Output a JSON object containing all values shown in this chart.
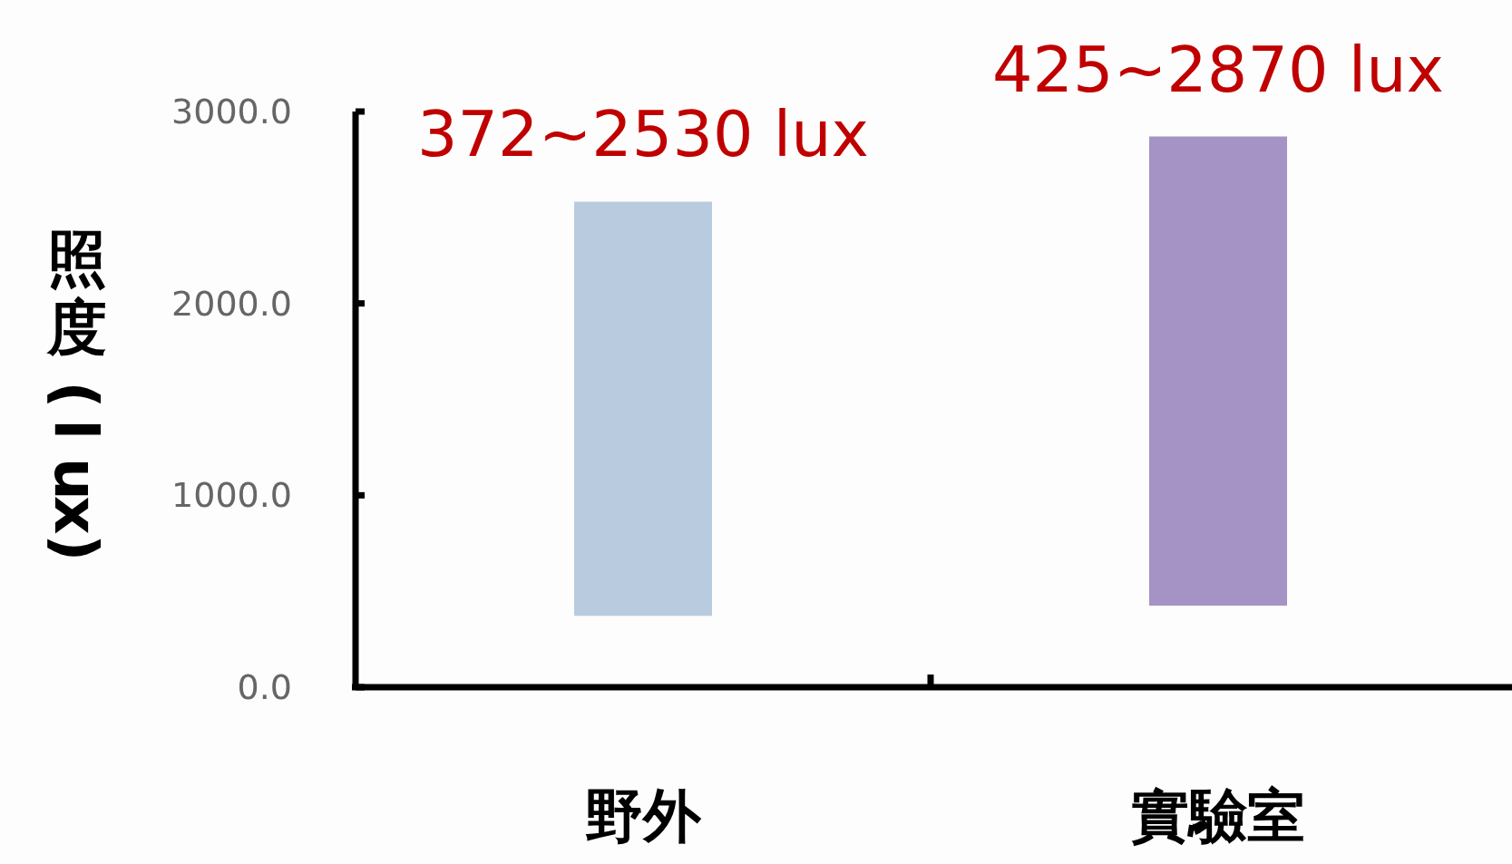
{
  "chart_data": {
    "type": "bar",
    "ylabel": "照度 (lux)",
    "categories": [
      "野外",
      "實驗室"
    ],
    "base": [
      372,
      425
    ],
    "values": [
      2158,
      2445
    ],
    "colors": [
      "#b9cbde",
      "#a593c5"
    ],
    "ylim": [
      0,
      3000
    ],
    "yticks": [
      {
        "value": 0,
        "label": "0.0"
      },
      {
        "value": 1000,
        "label": "1000.0"
      },
      {
        "value": 2000,
        "label": "2000.0"
      },
      {
        "value": 3000,
        "label": "3000.0"
      }
    ],
    "grid": false,
    "annotations": [
      {
        "text": "372~2530 lux",
        "x": "野外",
        "y": 2530
      },
      {
        "text": "425~2870 lux",
        "x": "實驗室",
        "y": 2870
      }
    ]
  }
}
